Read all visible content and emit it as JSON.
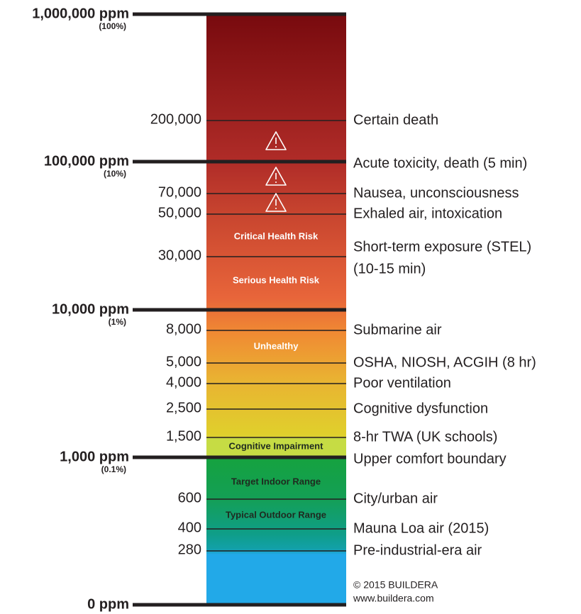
{
  "major_levels": [
    {
      "label": "1,000,000 ppm",
      "note": "(100%)"
    },
    {
      "label": "100,000 ppm",
      "note": "(10%)",
      "description": "Acute toxicity, death (5 min)"
    },
    {
      "label": "10,000 ppm",
      "note": "(1%)"
    },
    {
      "label": "1,000 ppm",
      "note": "(0.1%)",
      "description": "Upper comfort boundary"
    },
    {
      "label": "0 ppm"
    }
  ],
  "levels": [
    {
      "value": "200,000",
      "description": "Certain death"
    },
    {
      "value": "70,000",
      "description": "Nausea, unconsciousness"
    },
    {
      "value": "50,000",
      "description": "Exhaled air, intoxication"
    },
    {
      "value": "30,000",
      "description": "Short-term exposure (STEL)",
      "description_2": "(10-15 min)"
    },
    {
      "value": "8,000",
      "description": "Submarine air"
    },
    {
      "value": "5,000",
      "description": "OSHA, NIOSH, ACGIH (8 hr)"
    },
    {
      "value": "4,000",
      "description": "Poor ventilation"
    },
    {
      "value": "2,500",
      "description": "Cognitive dysfunction"
    },
    {
      "value": "1,500",
      "description": "8-hr TWA (UK schools)"
    },
    {
      "value": "600",
      "description": "City/urban air"
    },
    {
      "value": "400",
      "description": "Mauna Loa air (2015)"
    },
    {
      "value": "280",
      "description": "Pre-industrial-era air"
    }
  ],
  "zones": [
    "Critical Health Risk",
    "Serious Health Risk",
    "Unhealthy",
    "Cognitive Impairment",
    "Target Indoor Range",
    "Typical Outdoor Range"
  ],
  "footer": {
    "copyright": "© 2015 BUILDERA",
    "website": "www.buildera.com"
  }
}
